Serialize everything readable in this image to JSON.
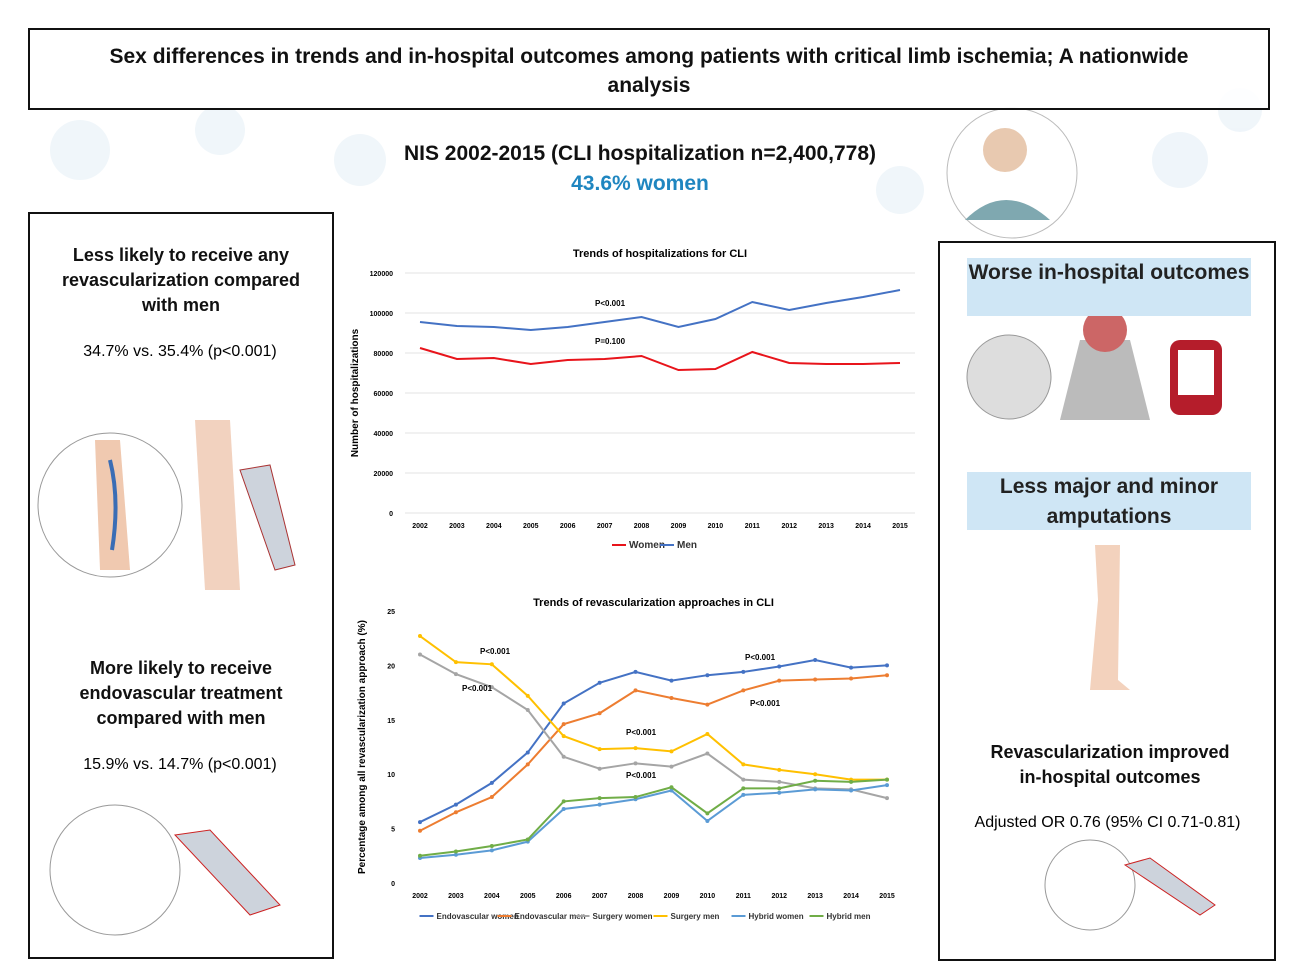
{
  "header": {
    "title": "Sex differences in trends and in-hospital outcomes among patients with critical limb ischemia; A nationwide analysis"
  },
  "summary": {
    "cohort": "NIS 2002-2015 (CLI hospitalization n=2,400,778)",
    "women_share": "43.6% women"
  },
  "left_panel": {
    "items": [
      {
        "heading": "Less likely to receive any revascularization compared with men",
        "stat": "34.7% vs. 35.4% (p<0.001)"
      },
      {
        "heading": "More likely to receive endovascular treatment compared with men",
        "stat": "15.9% vs. 14.7% (p<0.001)"
      }
    ]
  },
  "right_panel": {
    "items": [
      {
        "heading": "Worse in-hospital outcomes"
      },
      {
        "heading": "Less major and minor amputations"
      },
      {
        "heading": "Revascularization improved in-hospital outcomes",
        "stat": "Adjusted OR 0.76 (95% CI 0.71-0.81)"
      }
    ]
  },
  "chart_data": [
    {
      "type": "line",
      "title": "Trends of hospitalizations for CLI",
      "ylabel": "Number of hospitalizations",
      "categories": [
        "2002",
        "2003",
        "2004",
        "2005",
        "2006",
        "2007",
        "2008",
        "2009",
        "2010",
        "2011",
        "2012",
        "2013",
        "2014",
        "2015"
      ],
      "series": [
        {
          "name": "Women",
          "color": "#e8141b",
          "values": [
            82500,
            77000,
            77500,
            74500,
            76500,
            77000,
            78500,
            71500,
            72000,
            80500,
            75000,
            74500,
            74500,
            75000
          ]
        },
        {
          "name": "Men",
          "color": "#4472c4",
          "values": [
            95500,
            93500,
            93000,
            91500,
            93000,
            95500,
            98000,
            93000,
            97000,
            105500,
            101500,
            105000,
            108000,
            111500
          ]
        }
      ],
      "ylim": [
        0,
        120000
      ],
      "yticks": [
        0,
        20000,
        40000,
        60000,
        80000,
        100000,
        120000
      ],
      "grid": true,
      "legend": "bottom",
      "annotations": [
        "P<0.001",
        "P=0.100"
      ]
    },
    {
      "type": "line",
      "title": "Trends of revascularization approaches in CLI",
      "ylabel": "Percentage among all revascularization approach (%)",
      "categories": [
        "2002",
        "2003",
        "2004",
        "2005",
        "2006",
        "2007",
        "2008",
        "2009",
        "2010",
        "2011",
        "2012",
        "2013",
        "2014",
        "2015"
      ],
      "series": [
        {
          "name": "Endovascular women",
          "color": "#4472c4",
          "values": [
            5.6,
            7.2,
            9.2,
            12.0,
            16.5,
            18.4,
            19.4,
            18.6,
            19.1,
            19.4,
            19.9,
            20.5,
            19.8,
            20.0
          ]
        },
        {
          "name": "Endovascular men",
          "color": "#ed7d31",
          "values": [
            4.8,
            6.5,
            7.9,
            10.9,
            14.6,
            15.6,
            17.7,
            17.0,
            16.4,
            17.7,
            18.6,
            18.7,
            18.8,
            19.1
          ]
        },
        {
          "name": "Surgery women",
          "color": "#a5a5a5",
          "values": [
            21.0,
            19.2,
            18.0,
            15.9,
            11.6,
            10.5,
            11.0,
            10.7,
            11.9,
            9.5,
            9.3,
            8.7,
            8.6,
            7.8
          ]
        },
        {
          "name": "Surgery men",
          "color": "#ffc000",
          "values": [
            22.7,
            20.3,
            20.1,
            17.2,
            13.5,
            12.3,
            12.4,
            12.1,
            13.7,
            10.9,
            10.4,
            10.0,
            9.5,
            9.5
          ]
        },
        {
          "name": "Hybrid women",
          "color": "#5b9bd5",
          "values": [
            2.3,
            2.6,
            3.0,
            3.8,
            6.8,
            7.2,
            7.7,
            8.5,
            5.7,
            8.1,
            8.3,
            8.6,
            8.5,
            9.0
          ]
        },
        {
          "name": "Hybrid men",
          "color": "#70ad47",
          "values": [
            2.5,
            2.9,
            3.4,
            4.0,
            7.5,
            7.8,
            7.9,
            8.8,
            6.4,
            8.7,
            8.7,
            9.4,
            9.3,
            9.5
          ]
        }
      ],
      "ylim": [
        0,
        25
      ],
      "yticks": [
        0,
        5,
        10,
        15,
        20,
        25
      ],
      "grid": false,
      "legend": "bottom",
      "annotations": [
        "P<0.001",
        "P<0.001",
        "P<0.001",
        "P<0.001",
        "P<0.001",
        "P<0.001"
      ]
    }
  ]
}
